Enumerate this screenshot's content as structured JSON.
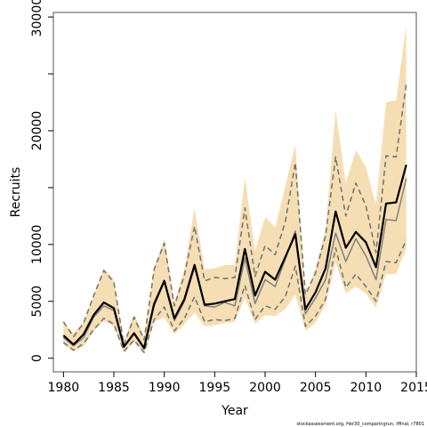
{
  "chart_data": {
    "type": "line",
    "xlabel": "Year",
    "ylabel": "Recruits",
    "xlim": [
      1979.0,
      2015.0
    ],
    "ylim": [
      -1200,
      30400
    ],
    "x_ticks": [
      1980,
      1985,
      1990,
      1995,
      2000,
      2005,
      2010,
      2015
    ],
    "y_ticks": [
      0,
      5000,
      10000,
      15000,
      20000,
      25000,
      30000
    ],
    "y_tick_labels": [
      "0",
      "5000",
      "10000",
      "",
      "20000",
      "",
      "30000"
    ],
    "grid": false,
    "legend": "none",
    "colors": {
      "band": "#f5deb3",
      "dashed": "#707070",
      "thin": "#808080",
      "main": "#000000"
    },
    "x": [
      1980,
      1981,
      1982,
      1983,
      1984,
      1985,
      1986,
      1987,
      1988,
      1989,
      1990,
      1991,
      1992,
      1993,
      1994,
      1995,
      1996,
      1997,
      1998,
      1999,
      2000,
      2001,
      2002,
      2003,
      2004,
      2005,
      2006,
      2007,
      2008,
      2009,
      2010,
      2011,
      2012,
      2013,
      2014
    ],
    "series": [
      {
        "role": "band_upper",
        "values": [
          3100,
          2200,
          3200,
          5500,
          7900,
          6900,
          1400,
          3900,
          1900,
          8000,
          10500,
          4900,
          7800,
          13200,
          7800,
          7900,
          8200,
          8200,
          15900,
          9400,
          12400,
          11500,
          15100,
          18800,
          5500,
          7900,
          11300,
          21800,
          15400,
          18300,
          16800,
          13500,
          22500,
          22700,
          29300
        ]
      },
      {
        "role": "band_lower",
        "values": [
          1200,
          600,
          1000,
          2400,
          3300,
          2800,
          500,
          1400,
          400,
          3200,
          3600,
          2100,
          3000,
          4000,
          2800,
          2900,
          3100,
          3200,
          5300,
          3000,
          3800,
          3700,
          4300,
          5600,
          2400,
          3100,
          4700,
          8400,
          5700,
          6300,
          5700,
          4400,
          7400,
          7400,
          9600
        ]
      },
      {
        "role": "dashed_upper",
        "values": [
          3200,
          1900,
          3100,
          5500,
          7700,
          6700,
          1200,
          3600,
          1600,
          7800,
          10100,
          4600,
          7300,
          11600,
          6800,
          7100,
          7000,
          7100,
          13200,
          7200,
          9900,
          9100,
          12000,
          17200,
          5600,
          7500,
          10800,
          17700,
          12500,
          15400,
          13400,
          9300,
          17800,
          17700,
          24100
        ]
      },
      {
        "role": "dashed_lower",
        "values": [
          1400,
          700,
          1300,
          2500,
          3500,
          3000,
          600,
          1600,
          500,
          3400,
          4500,
          2400,
          3500,
          5400,
          3200,
          3400,
          3300,
          3500,
          6400,
          3400,
          4600,
          4300,
          5400,
          8100,
          2800,
          3700,
          5200,
          9700,
          6200,
          7400,
          6300,
          5000,
          8500,
          8400,
          10400
        ]
      },
      {
        "role": "thin_median",
        "values": [
          1800,
          1100,
          1800,
          3600,
          4600,
          4200,
          1000,
          2100,
          800,
          4600,
          6700,
          3300,
          5000,
          8000,
          4600,
          4500,
          4900,
          4600,
          8800,
          4800,
          6900,
          6300,
          8700,
          11200,
          3900,
          5300,
          6900,
          11000,
          8500,
          10500,
          9000,
          6900,
          12200,
          12100,
          15800
        ]
      },
      {
        "role": "main",
        "values": [
          2000,
          1200,
          2100,
          3800,
          4900,
          4400,
          1000,
          2200,
          900,
          4800,
          6800,
          3500,
          5200,
          8200,
          4700,
          4800,
          5000,
          5200,
          9600,
          5500,
          7600,
          6900,
          8900,
          10900,
          4300,
          5800,
          7900,
          12900,
          9700,
          11100,
          10200,
          8000,
          13600,
          13700,
          17000
        ]
      }
    ],
    "annotation": "stockassessment.org, Her30_comparingrun, iffinal, r7801"
  }
}
